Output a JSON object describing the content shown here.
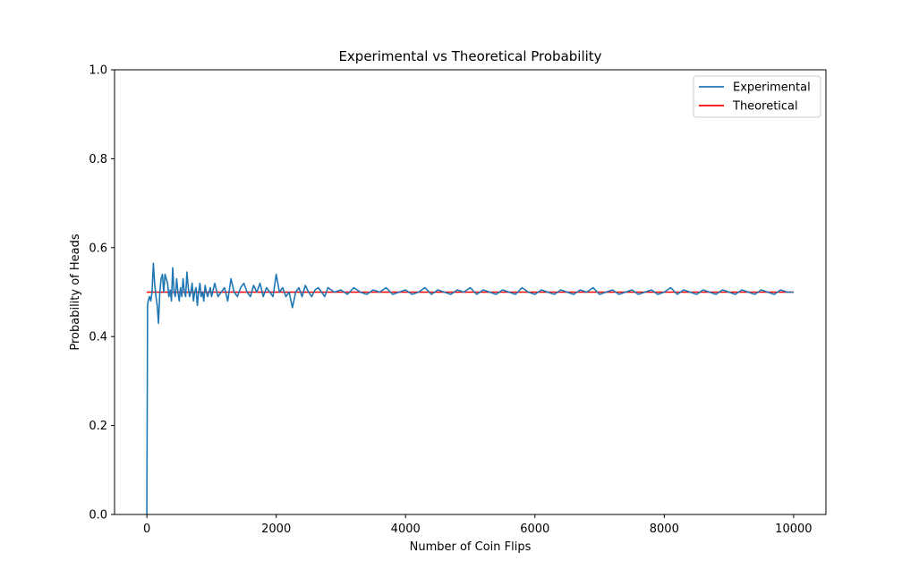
{
  "chart_data": {
    "type": "line",
    "title": "Experimental vs Theoretical Probability",
    "xlabel": "Number of Coin Flips",
    "ylabel": "Probability of Heads",
    "xlim": [
      -500,
      10500
    ],
    "ylim": [
      0.0,
      1.0
    ],
    "xticks": [
      0,
      2000,
      4000,
      6000,
      8000,
      10000
    ],
    "xtick_labels": [
      "0",
      "2000",
      "4000",
      "6000",
      "8000",
      "10000"
    ],
    "yticks": [
      0.0,
      0.2,
      0.4,
      0.6,
      0.8,
      1.0
    ],
    "ytick_labels": [
      "0.0",
      "0.2",
      "0.4",
      "0.6",
      "0.8",
      "1.0"
    ],
    "grid": false,
    "legend_position": "top-right",
    "series": [
      {
        "name": "Experimental",
        "color": "#1f77b4",
        "x": [
          0,
          10,
          20,
          40,
          60,
          80,
          100,
          120,
          140,
          160,
          180,
          200,
          220,
          240,
          260,
          280,
          300,
          320,
          340,
          360,
          380,
          400,
          420,
          440,
          460,
          480,
          500,
          520,
          540,
          560,
          580,
          600,
          620,
          640,
          660,
          680,
          700,
          720,
          740,
          760,
          780,
          800,
          820,
          840,
          860,
          880,
          900,
          920,
          940,
          960,
          980,
          1000,
          1050,
          1100,
          1150,
          1200,
          1250,
          1300,
          1350,
          1400,
          1450,
          1500,
          1550,
          1600,
          1650,
          1700,
          1750,
          1800,
          1850,
          1900,
          1950,
          2000,
          2050,
          2100,
          2150,
          2200,
          2250,
          2300,
          2350,
          2400,
          2450,
          2500,
          2550,
          2600,
          2650,
          2700,
          2750,
          2800,
          2900,
          3000,
          3100,
          3200,
          3300,
          3400,
          3500,
          3600,
          3700,
          3800,
          3900,
          4000,
          4100,
          4200,
          4300,
          4400,
          4500,
          4600,
          4700,
          4800,
          4900,
          5000,
          5100,
          5200,
          5300,
          5400,
          5500,
          5600,
          5700,
          5800,
          5900,
          6000,
          6100,
          6200,
          6300,
          6400,
          6500,
          6600,
          6700,
          6800,
          6900,
          7000,
          7100,
          7200,
          7300,
          7400,
          7500,
          7600,
          7700,
          7800,
          7900,
          8000,
          8100,
          8200,
          8300,
          8400,
          8500,
          8600,
          8700,
          8800,
          8900,
          9000,
          9100,
          9200,
          9300,
          9400,
          9500,
          9600,
          9700,
          9800,
          9900,
          10000
        ],
        "y": [
          0.0,
          0.47,
          0.48,
          0.49,
          0.48,
          0.5,
          0.565,
          0.52,
          0.49,
          0.47,
          0.43,
          0.5,
          0.53,
          0.54,
          0.5,
          0.54,
          0.53,
          0.52,
          0.49,
          0.505,
          0.48,
          0.555,
          0.5,
          0.49,
          0.53,
          0.5,
          0.48,
          0.51,
          0.49,
          0.53,
          0.5,
          0.49,
          0.545,
          0.51,
          0.49,
          0.5,
          0.52,
          0.48,
          0.5,
          0.51,
          0.47,
          0.5,
          0.52,
          0.49,
          0.5,
          0.48,
          0.515,
          0.5,
          0.49,
          0.5,
          0.51,
          0.49,
          0.52,
          0.49,
          0.5,
          0.51,
          0.48,
          0.53,
          0.5,
          0.49,
          0.51,
          0.52,
          0.5,
          0.49,
          0.515,
          0.5,
          0.52,
          0.49,
          0.51,
          0.5,
          0.49,
          0.54,
          0.5,
          0.51,
          0.49,
          0.5,
          0.465,
          0.5,
          0.51,
          0.49,
          0.515,
          0.5,
          0.49,
          0.505,
          0.51,
          0.5,
          0.49,
          0.51,
          0.5,
          0.505,
          0.495,
          0.51,
          0.5,
          0.495,
          0.505,
          0.5,
          0.51,
          0.495,
          0.5,
          0.505,
          0.495,
          0.5,
          0.51,
          0.495,
          0.505,
          0.5,
          0.495,
          0.505,
          0.5,
          0.51,
          0.495,
          0.505,
          0.5,
          0.495,
          0.505,
          0.5,
          0.495,
          0.51,
          0.5,
          0.495,
          0.505,
          0.5,
          0.495,
          0.505,
          0.5,
          0.495,
          0.505,
          0.5,
          0.51,
          0.495,
          0.5,
          0.505,
          0.495,
          0.5,
          0.505,
          0.495,
          0.5,
          0.505,
          0.495,
          0.5,
          0.51,
          0.495,
          0.505,
          0.5,
          0.495,
          0.505,
          0.5,
          0.495,
          0.505,
          0.5,
          0.495,
          0.505,
          0.5,
          0.495,
          0.505,
          0.5,
          0.495,
          0.505,
          0.5,
          0.5
        ]
      },
      {
        "name": "Theoretical",
        "color": "#ff0000",
        "x": [
          0,
          10000
        ],
        "y": [
          0.5,
          0.5
        ]
      }
    ]
  }
}
